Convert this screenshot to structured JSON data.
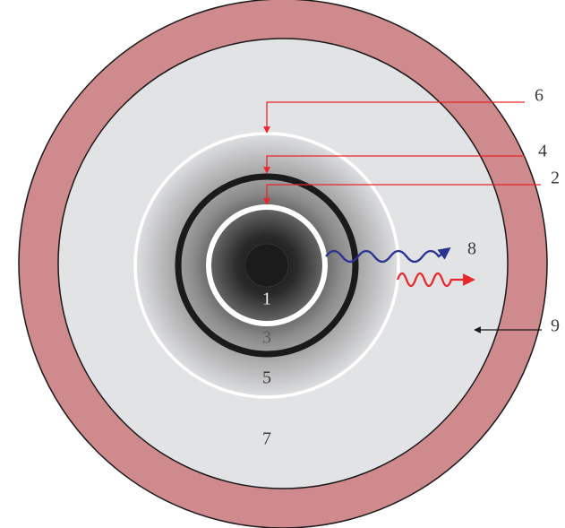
{
  "diagram": {
    "colors": {
      "outer_ring": "#cf8a8d",
      "outer_ring_stroke": "#1a1a1a",
      "disk_fill": "#e2e3e5",
      "gradient_inner": "#141414",
      "gradient_outer": "#e2e3e5",
      "black_ring": "#1a1a1a",
      "white_ring": "#ffffff",
      "callout_red": "#e8262b",
      "wave_blue": "#2b3391",
      "label_gray": "#3a3a3a",
      "label_light": "#f2f2f2"
    },
    "zone_labels": {
      "one": "1",
      "three": "3",
      "five": "5",
      "seven": "7"
    },
    "callout_labels": {
      "two": "2",
      "four": "4",
      "six": "6",
      "eight": "8",
      "nine": "9"
    },
    "icons": {
      "blue_wave": "wavy-arrow-icon",
      "red_wave": "wavy-arrow-icon",
      "callout_arrow": "arrow-icon"
    }
  }
}
